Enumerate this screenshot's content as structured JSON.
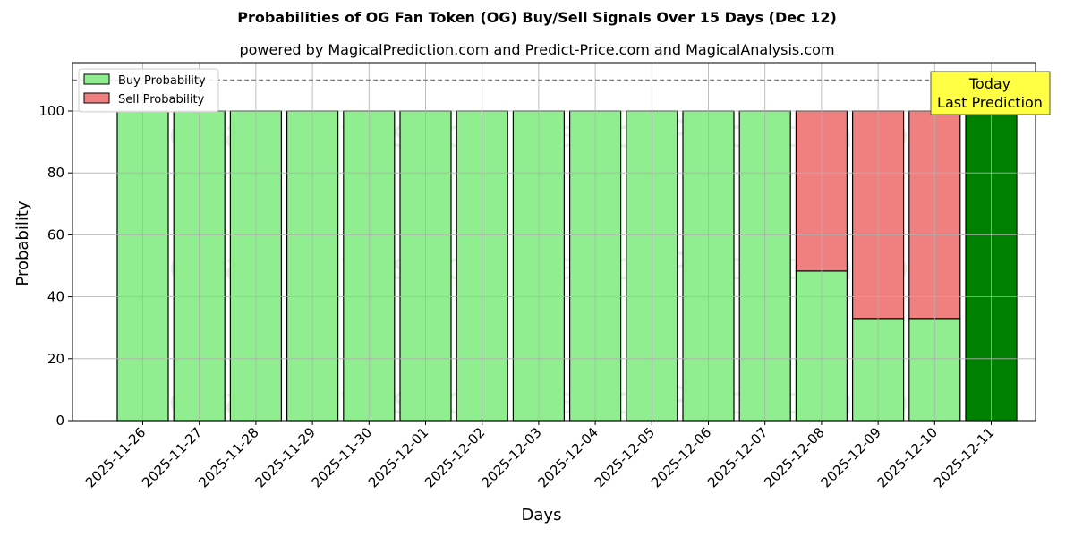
{
  "chart_data": {
    "type": "bar",
    "stacked": true,
    "title": "Probabilities of OG Fan Token (OG) Buy/Sell Signals Over 15 Days (Dec 12)",
    "subtitle": "powered by MagicalPrediction.com and Predict-Price.com and MagicalAnalysis.com",
    "xlabel": "Days",
    "ylabel": "Probability",
    "ylim": [
      0,
      115
    ],
    "yticks": [
      0,
      20,
      40,
      60,
      80,
      100
    ],
    "grid": true,
    "reference_line": 110,
    "legend_position": "upper left",
    "categories": [
      "2025-11-26",
      "2025-11-27",
      "2025-11-28",
      "2025-11-29",
      "2025-11-30",
      "2025-12-01",
      "2025-12-02",
      "2025-12-03",
      "2025-12-04",
      "2025-12-05",
      "2025-12-06",
      "2025-12-07",
      "2025-12-08",
      "2025-12-09",
      "2025-12-10",
      "2025-12-11"
    ],
    "series": [
      {
        "name": "Buy Probability",
        "color": "#90ee90",
        "values": [
          100,
          100,
          100,
          100,
          100,
          100,
          100,
          100,
          100,
          100,
          100,
          100,
          48.3,
          33,
          33,
          100
        ]
      },
      {
        "name": "Sell Probability",
        "color": "#f08080",
        "values": [
          0,
          0,
          0,
          0,
          0,
          0,
          0,
          0,
          0,
          0,
          0,
          0,
          51.7,
          67,
          67,
          0
        ]
      }
    ],
    "highlight": {
      "index": 15,
      "color": "#008000",
      "label": "Today\nLast Prediction"
    },
    "watermarks": [
      "MagicalAnalysis.com",
      "MagicalPrediction.com"
    ]
  }
}
